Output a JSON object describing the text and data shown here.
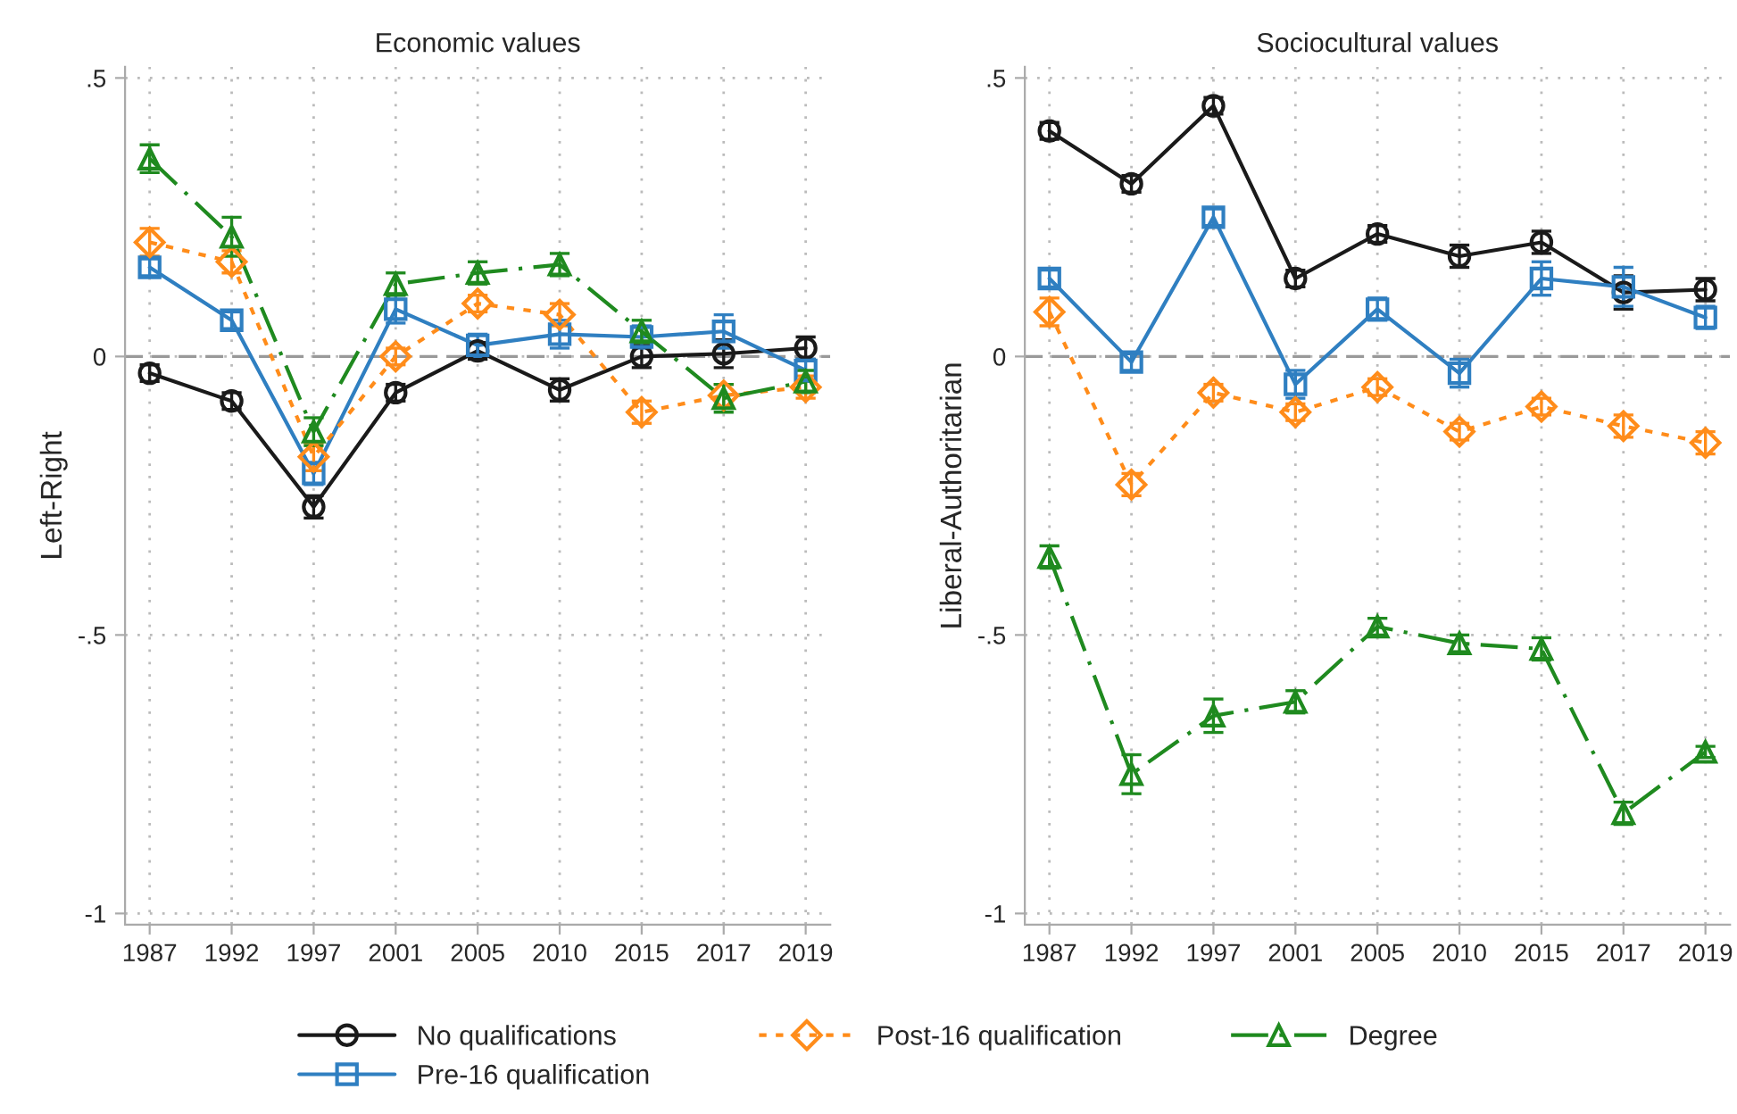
{
  "chart_data": [
    {
      "type": "line",
      "title": "Economic values",
      "ylabel": "Left-Right",
      "categories": [
        "1987",
        "1992",
        "1997",
        "2001",
        "2005",
        "2010",
        "2015",
        "2017",
        "2019"
      ],
      "ylim": [
        -1.02,
        0.52
      ],
      "yticks": [
        {
          "value": -1,
          "label": "-1"
        },
        {
          "value": -0.5,
          "label": "-.5"
        },
        0,
        {
          "value": 0.5,
          "label": ".5"
        }
      ],
      "grid": true,
      "legend": "bottom",
      "ref_lines": [
        {
          "axis": "y",
          "value": 0,
          "color": "#999999",
          "line_style": "dashed"
        }
      ],
      "series": [
        {
          "name": "No qualifications",
          "color": "#1a1a1a",
          "marker": "circle",
          "line_style": "solid",
          "values": [
            -0.03,
            -0.08,
            -0.27,
            -0.065,
            0.01,
            -0.06,
            0.0,
            0.005,
            0.015
          ],
          "errors": [
            0.015,
            0.015,
            0.02,
            0.015,
            0.015,
            0.02,
            0.02,
            0.025,
            0.02
          ]
        },
        {
          "name": "Pre-16 qualification",
          "color": "#2f7fc1",
          "marker": "square",
          "line_style": "solid",
          "values": [
            0.16,
            0.065,
            -0.21,
            0.085,
            0.02,
            0.04,
            0.035,
            0.045,
            -0.025
          ],
          "errors": [
            0.015,
            0.015,
            0.02,
            0.025,
            0.02,
            0.025,
            0.02,
            0.03,
            0.02
          ]
        },
        {
          "name": "Post-16 qualification",
          "color": "#ff8c1a",
          "marker": "diamond",
          "line_style": "dotted",
          "values": [
            0.205,
            0.17,
            -0.18,
            0.0,
            0.095,
            0.075,
            -0.1,
            -0.07,
            -0.055
          ],
          "errors": [
            0.025,
            0.02,
            0.025,
            0.015,
            0.015,
            0.02,
            0.02,
            0.02,
            0.02
          ]
        },
        {
          "name": "Degree",
          "color": "#1f8a1f",
          "marker": "triangle",
          "line_style": "dashed",
          "values": [
            0.355,
            0.215,
            -0.135,
            0.13,
            0.15,
            0.165,
            0.045,
            -0.075,
            -0.045
          ],
          "errors": [
            0.025,
            0.035,
            0.025,
            0.02,
            0.02,
            0.02,
            0.02,
            0.025,
            0.02
          ]
        }
      ]
    },
    {
      "type": "line",
      "title": "Sociocultural values",
      "ylabel": "Liberal-Authoritarian",
      "categories": [
        "1987",
        "1992",
        "1997",
        "2001",
        "2005",
        "2010",
        "2015",
        "2017",
        "2019"
      ],
      "ylim": [
        -1.02,
        0.52
      ],
      "yticks": [
        {
          "value": -1,
          "label": "-1"
        },
        {
          "value": -0.5,
          "label": "-.5"
        },
        0,
        {
          "value": 0.5,
          "label": ".5"
        }
      ],
      "grid": true,
      "ref_lines": [
        {
          "axis": "y",
          "value": 0,
          "color": "#999999",
          "line_style": "dashed"
        }
      ],
      "series": [
        {
          "color": "#1a1a1a",
          "marker": "circle",
          "line_style": "solid",
          "values": [
            0.405,
            0.31,
            0.45,
            0.14,
            0.22,
            0.18,
            0.205,
            0.115,
            0.12
          ],
          "errors": [
            0.015,
            0.015,
            0.015,
            0.015,
            0.015,
            0.02,
            0.02,
            0.03,
            0.02
          ]
        },
        {
          "color": "#2f7fc1",
          "marker": "square",
          "line_style": "solid",
          "values": [
            0.14,
            -0.01,
            0.25,
            -0.05,
            0.085,
            -0.03,
            0.14,
            0.125,
            0.07
          ],
          "errors": [
            0.015,
            0.015,
            0.015,
            0.025,
            0.02,
            0.025,
            0.03,
            0.035,
            0.02
          ]
        },
        {
          "color": "#ff8c1a",
          "marker": "diamond",
          "line_style": "dotted",
          "values": [
            0.08,
            -0.23,
            -0.065,
            -0.1,
            -0.055,
            -0.135,
            -0.09,
            -0.125,
            -0.155
          ],
          "errors": [
            0.025,
            0.02,
            0.015,
            0.015,
            0.015,
            0.015,
            0.015,
            0.02,
            0.02
          ]
        },
        {
          "color": "#1f8a1f",
          "marker": "triangle",
          "line_style": "dashed",
          "values": [
            -0.36,
            -0.75,
            -0.645,
            -0.62,
            -0.485,
            -0.515,
            -0.525,
            -0.82,
            -0.71
          ],
          "errors": [
            0.02,
            0.035,
            0.03,
            0.02,
            0.015,
            0.015,
            0.02,
            0.02,
            0.01
          ]
        }
      ]
    }
  ]
}
